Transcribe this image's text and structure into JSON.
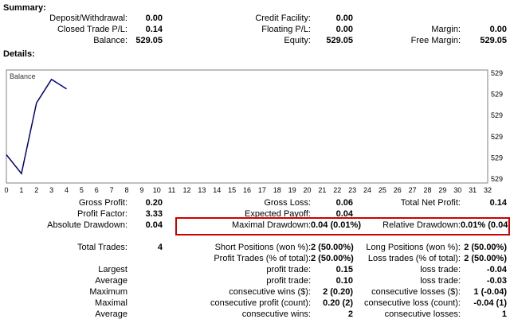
{
  "summary": {
    "title": "Summary:",
    "rows": [
      {
        "cells": [
          {
            "l": "Deposit/Withdrawal:",
            "v": "0.00"
          },
          {
            "l": "Credit Facility:",
            "v": "0.00"
          },
          {
            "l": "",
            "v": ""
          }
        ]
      },
      {
        "cells": [
          {
            "l": "Closed Trade P/L:",
            "v": "0.14"
          },
          {
            "l": "Floating P/L:",
            "v": "0.00"
          },
          {
            "l": "Margin:",
            "v": "0.00"
          }
        ]
      },
      {
        "cells": [
          {
            "l": "Balance:",
            "v": "529.05"
          },
          {
            "l": "Equity:",
            "v": "529.05"
          },
          {
            "l": "Free Margin:",
            "v": "529.05"
          }
        ]
      }
    ]
  },
  "details": {
    "title": "Details:",
    "rows": [
      {
        "cells": [
          {
            "l": "Gross Profit:",
            "v": "0.20"
          },
          {
            "l": "Gross Loss:",
            "v": "0.06"
          },
          {
            "l": "Total Net Profit:",
            "v": "0.14"
          }
        ]
      },
      {
        "cells": [
          {
            "l": "Profit Factor:",
            "v": "3.33"
          },
          {
            "l": "Expected Payoff:",
            "v": "0.04"
          },
          {
            "l": "",
            "v": ""
          }
        ]
      },
      {
        "cells": [
          {
            "l": "Absolute Drawdown:",
            "v": "0.04"
          },
          {
            "l": "Maximal Drawdown:",
            "v": "0.04 (0.01%)"
          },
          {
            "l": "Relative Drawdown:",
            "v": "0.01% (0.04)"
          }
        ],
        "highlight": true
      },
      {
        "spacer": true
      },
      {
        "cells": [
          {
            "l": "Total Trades:",
            "v": "4"
          },
          {
            "l": "Short Positions (won %):",
            "v": "2 (50.00%)"
          },
          {
            "l": "Long Positions (won %):",
            "v": "2 (50.00%)"
          }
        ]
      },
      {
        "cells": [
          {
            "l": "",
            "v": ""
          },
          {
            "l": "Profit Trades (% of total):",
            "v": "2 (50.00%)"
          },
          {
            "l": "Loss trades (% of total):",
            "v": "2 (50.00%)"
          }
        ]
      },
      {
        "cells": [
          {
            "l": "Largest",
            "v": ""
          },
          {
            "l": "profit trade:",
            "v": "0.15"
          },
          {
            "l": "loss trade:",
            "v": "-0.04"
          }
        ]
      },
      {
        "cells": [
          {
            "l": "Average",
            "v": ""
          },
          {
            "l": "profit trade:",
            "v": "0.10"
          },
          {
            "l": "loss trade:",
            "v": "-0.03"
          }
        ]
      },
      {
        "cells": [
          {
            "l": "Maximum",
            "v": ""
          },
          {
            "l": "consecutive wins ($):",
            "v": "2 (0.20)"
          },
          {
            "l": "consecutive losses ($):",
            "v": "1 (-0.04)"
          }
        ]
      },
      {
        "cells": [
          {
            "l": "Maximal",
            "v": ""
          },
          {
            "l": "consecutive profit (count):",
            "v": "0.20 (2)"
          },
          {
            "l": "consecutive loss (count):",
            "v": "-0.04 (1)"
          }
        ]
      },
      {
        "cells": [
          {
            "l": "Average",
            "v": ""
          },
          {
            "l": "consecutive wins:",
            "v": "2"
          },
          {
            "l": "consecutive losses:",
            "v": "1"
          }
        ]
      }
    ]
  },
  "chart_data": {
    "type": "line",
    "title": "Balance",
    "series": [
      {
        "name": "Balance",
        "x": [
          0,
          1,
          2,
          3,
          4
        ],
        "y": [
          528.91,
          528.87,
          529.02,
          529.07,
          529.05
        ]
      }
    ],
    "xlim": [
      0,
      32
    ],
    "ylim": [
      528.85,
      529.09
    ],
    "x_ticks": [
      "0",
      "1",
      "2",
      "3",
      "4",
      "5",
      "6",
      "7",
      "8",
      "9",
      "10",
      "11",
      "12",
      "13",
      "14",
      "15",
      "16",
      "17",
      "18",
      "19",
      "20",
      "21",
      "22",
      "23",
      "24",
      "25",
      "26",
      "27",
      "28",
      "29",
      "30",
      "31",
      "32"
    ],
    "y_tick_labels": [
      "529",
      "529",
      "529",
      "529",
      "529",
      "529"
    ],
    "line_color": "#000080",
    "plot_border_color": "#808080",
    "grid": false,
    "legend_position": "top-left"
  },
  "annotation": {
    "highlight_color": "#cc0000",
    "highlighted_stats": [
      "Maximal Drawdown",
      "Relative Drawdown"
    ]
  }
}
